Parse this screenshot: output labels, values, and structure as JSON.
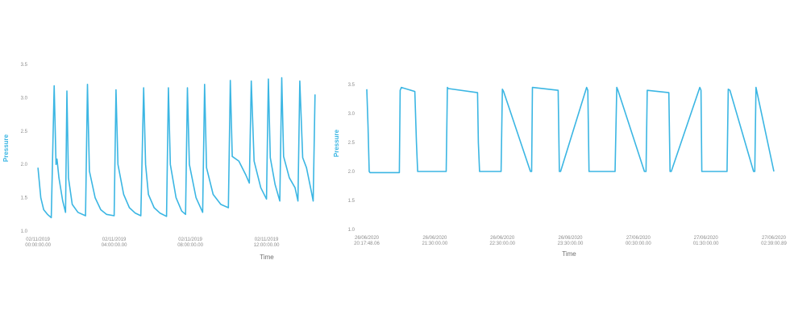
{
  "colors": {
    "series": "#3bb6e3",
    "ylabel": "#3bb6e3",
    "xlabel": "#6e6e6e",
    "tick": "#8c8c8c"
  },
  "chart_data": [
    {
      "type": "line",
      "ylabel": "Pressure",
      "xlabel": "Time",
      "ylim": [
        1.0,
        3.5
      ],
      "yticks": [
        "1.0",
        "1.5",
        "2.0",
        "2.5",
        "3.0",
        "3.5"
      ],
      "grid": false,
      "xlim": [
        -0.3,
        14.6
      ],
      "xticks": [
        {
          "x": 0,
          "label": [
            "02/11/2019",
            "00:00:00.00"
          ]
        },
        {
          "x": 4,
          "label": [
            "02/11/2019",
            "04:00:00.00"
          ]
        },
        {
          "x": 8,
          "label": [
            "02/11/2019",
            "08:00:00.00"
          ]
        },
        {
          "x": 12,
          "label": [
            "02/11/2019",
            "12:00:00.00"
          ]
        }
      ],
      "series": [
        {
          "x": [
            0.0,
            0.15,
            0.3,
            0.5,
            0.7,
            0.85,
            0.95,
            1.0,
            1.1,
            1.3,
            1.45,
            1.52,
            1.6,
            1.8,
            2.1,
            2.5,
            2.6,
            2.7,
            3.0,
            3.3,
            3.6,
            4.0,
            4.1,
            4.2,
            4.5,
            4.8,
            5.1,
            5.4,
            5.55,
            5.65,
            5.8,
            6.1,
            6.4,
            6.75,
            6.85,
            6.95,
            7.25,
            7.55,
            7.75,
            7.85,
            7.95,
            8.3,
            8.65,
            8.75,
            8.85,
            9.2,
            9.6,
            10.0,
            10.1,
            10.2,
            10.55,
            10.9,
            11.1,
            11.2,
            11.35,
            11.7,
            12.0,
            12.1,
            12.2,
            12.45,
            12.7,
            12.8,
            12.9,
            13.2,
            13.5,
            13.65,
            13.75,
            13.9,
            14.1,
            14.35,
            14.45,
            14.55
          ],
          "y": [
            1.95,
            1.5,
            1.32,
            1.25,
            1.2,
            3.18,
            2.0,
            2.08,
            1.8,
            1.45,
            1.28,
            3.1,
            1.8,
            1.4,
            1.28,
            1.23,
            3.2,
            1.9,
            1.5,
            1.32,
            1.25,
            1.23,
            3.12,
            2.0,
            1.55,
            1.35,
            1.27,
            1.23,
            3.15,
            2.0,
            1.55,
            1.35,
            1.27,
            1.22,
            3.15,
            2.0,
            1.5,
            1.3,
            1.25,
            3.15,
            2.0,
            1.5,
            1.28,
            3.2,
            1.95,
            1.55,
            1.4,
            1.35,
            3.26,
            2.12,
            2.05,
            1.85,
            1.72,
            3.25,
            2.05,
            1.65,
            1.48,
            3.28,
            2.1,
            1.7,
            1.45,
            3.3,
            2.12,
            1.8,
            1.65,
            1.45,
            3.25,
            2.1,
            1.95,
            1.6,
            1.45,
            3.05
          ]
        }
      ]
    },
    {
      "type": "line",
      "ylabel": "Pressure",
      "xlabel": "Time",
      "ylim": [
        1.0,
        3.5
      ],
      "yticks": [
        "1.0",
        "1.5",
        "2.0",
        "2.5",
        "3.0",
        "3.5"
      ],
      "grid": false,
      "xlim": [
        0,
        10
      ],
      "xticks": [
        {
          "x": 0,
          "label": [
            "26/06/2020",
            "20:17:48.06"
          ]
        },
        {
          "x": 1.67,
          "label": [
            "26/06/2020",
            "21:30:00.00"
          ]
        },
        {
          "x": 3.33,
          "label": [
            "26/06/2020",
            "22:30:00.00"
          ]
        },
        {
          "x": 5.0,
          "label": [
            "26/06/2020",
            "23:30:00.00"
          ]
        },
        {
          "x": 6.67,
          "label": [
            "27/06/2020",
            "00:30:00.00"
          ]
        },
        {
          "x": 8.33,
          "label": [
            "27/06/2020",
            "01:30:00.00"
          ]
        },
        {
          "x": 10.0,
          "label": [
            "27/06/2020",
            "02:39:00.89"
          ]
        }
      ],
      "series": [
        {
          "x": [
            0.0,
            0.03,
            0.06,
            0.08,
            0.8,
            0.82,
            0.85,
            1.18,
            1.22,
            1.25,
            1.95,
            1.98,
            2.0,
            2.72,
            2.74,
            2.77,
            3.3,
            3.33,
            3.36,
            4.02,
            4.05,
            4.07,
            4.7,
            4.73,
            4.76,
            5.4,
            5.43,
            5.46,
            6.1,
            6.14,
            6.17,
            6.82,
            6.86,
            6.89,
            7.42,
            7.45,
            7.48,
            8.18,
            8.21,
            8.23,
            8.85,
            8.88,
            8.92,
            9.5,
            9.53,
            9.56,
            10.0
          ],
          "y": [
            3.42,
            2.8,
            2.0,
            1.98,
            1.98,
            3.4,
            3.45,
            3.38,
            2.5,
            2.0,
            2.0,
            3.45,
            3.43,
            3.36,
            2.5,
            2.0,
            2.0,
            3.42,
            3.38,
            2.0,
            2.0,
            3.45,
            3.4,
            2.0,
            2.0,
            3.45,
            3.4,
            2.0,
            2.0,
            3.45,
            3.4,
            2.0,
            2.0,
            3.4,
            3.36,
            2.0,
            2.0,
            3.45,
            3.4,
            2.0,
            2.0,
            3.42,
            3.4,
            2.0,
            2.0,
            3.45,
            2.0
          ]
        }
      ]
    }
  ]
}
